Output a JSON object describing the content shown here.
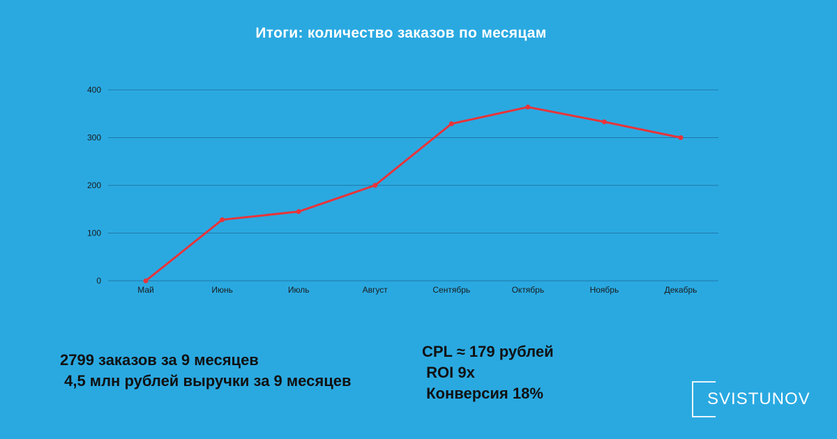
{
  "chart_data": {
    "type": "line",
    "title": "Итоги: количество заказов по месяцам",
    "categories": [
      "Май",
      "Июнь",
      "Июль",
      "Август",
      "Сентябрь",
      "Октябрь",
      "Ноябрь",
      "Декабрь"
    ],
    "values": [
      0,
      128,
      145,
      200,
      329,
      364,
      333,
      300
    ],
    "ylim": [
      0,
      400
    ],
    "yticks": [
      0,
      100,
      200,
      300,
      400
    ],
    "grid": true,
    "colors": {
      "line": "#E8343A",
      "grid": "#1E78A8",
      "tick_text": "#1A1A1A"
    }
  },
  "stats_left": [
    "2799 заказов за 9 месяцев",
    " 4,5 млн рублей выручки за 9 месяцев"
  ],
  "stats_right": [
    "CPL ≈ 179 рублей",
    " ROI 9x",
    " Конверсия 18%"
  ],
  "logo": {
    "text": "SVISTUNOV"
  },
  "colors": {
    "background": "#2AA9E1"
  }
}
